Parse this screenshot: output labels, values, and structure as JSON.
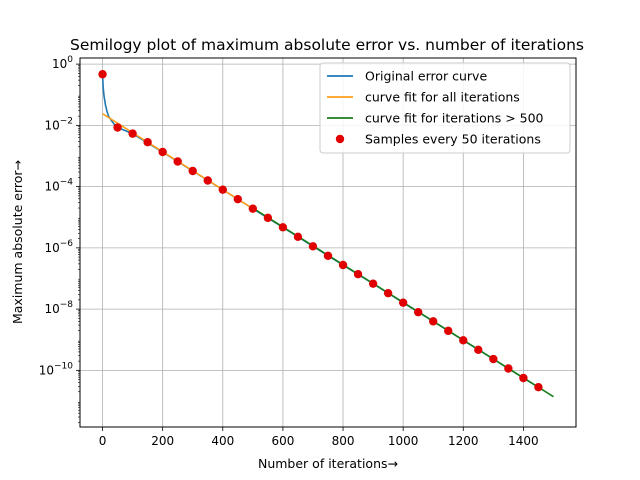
{
  "chart_data": {
    "type": "line",
    "title": "Semilogy plot of maximum absolute error vs. number of iterations",
    "xlabel": "Number of iterations",
    "ylabel": "Maximum absolute error",
    "arrow": "→",
    "xlim": [
      -75,
      1575
    ],
    "ylim_log10": [
      -11.85,
      0.2
    ],
    "y_scale": "log",
    "grid": true,
    "legend_position": "top-right",
    "x_ticks": [
      0,
      200,
      400,
      600,
      800,
      1000,
      1200,
      1400
    ],
    "y_ticks": [
      {
        "exp": 0,
        "base": "10",
        "power": "0"
      },
      {
        "exp": -2,
        "base": "10",
        "power": "−2"
      },
      {
        "exp": -4,
        "base": "10",
        "power": "−4"
      },
      {
        "exp": -6,
        "base": "10",
        "power": "−6"
      },
      {
        "exp": -8,
        "base": "10",
        "power": "−8"
      },
      {
        "exp": -10,
        "base": "10",
        "power": "−10"
      }
    ],
    "series": [
      {
        "name": "Original error curve",
        "kind": "line",
        "color": "#1f77b4",
        "x": [
          0,
          2,
          5,
          10,
          15,
          20,
          30,
          40,
          50,
          100,
          200,
          300,
          400,
          500,
          600,
          700,
          800,
          900,
          1000,
          1100,
          1200,
          1300,
          1400,
          1450
        ],
        "log10_y": [
          -0.33,
          -0.75,
          -1.05,
          -1.35,
          -1.55,
          -1.7,
          -1.85,
          -1.98,
          -2.07,
          -2.27,
          -2.87,
          -3.49,
          -4.1,
          -4.72,
          -5.33,
          -5.95,
          -6.56,
          -7.17,
          -7.79,
          -8.4,
          -9.02,
          -9.63,
          -10.25,
          -10.55
        ]
      },
      {
        "name": "curve fit for all iterations",
        "kind": "line",
        "color": "#ff9f1c",
        "x": [
          0,
          500
        ],
        "log10_y": [
          -1.62,
          -4.72
        ]
      },
      {
        "name": "curve fit for iterations > 500",
        "kind": "line",
        "color": "#1a7f1a",
        "x": [
          500,
          1500
        ],
        "log10_y": [
          -4.7,
          -10.86
        ]
      },
      {
        "name": "Samples every 50 iterations",
        "kind": "scatter",
        "color": "#e00000",
        "x": [
          0,
          50,
          100,
          150,
          200,
          250,
          300,
          350,
          400,
          450,
          500,
          550,
          600,
          650,
          700,
          750,
          800,
          850,
          900,
          950,
          1000,
          1050,
          1100,
          1150,
          1200,
          1250,
          1300,
          1350,
          1400,
          1450
        ],
        "log10_y": [
          -0.33,
          -2.07,
          -2.27,
          -2.55,
          -2.87,
          -3.18,
          -3.49,
          -3.8,
          -4.1,
          -4.41,
          -4.72,
          -5.02,
          -5.33,
          -5.64,
          -5.95,
          -6.26,
          -6.56,
          -6.86,
          -7.17,
          -7.48,
          -7.79,
          -8.1,
          -8.4,
          -8.71,
          -9.02,
          -9.33,
          -9.63,
          -9.94,
          -10.25,
          -10.55
        ]
      }
    ]
  }
}
